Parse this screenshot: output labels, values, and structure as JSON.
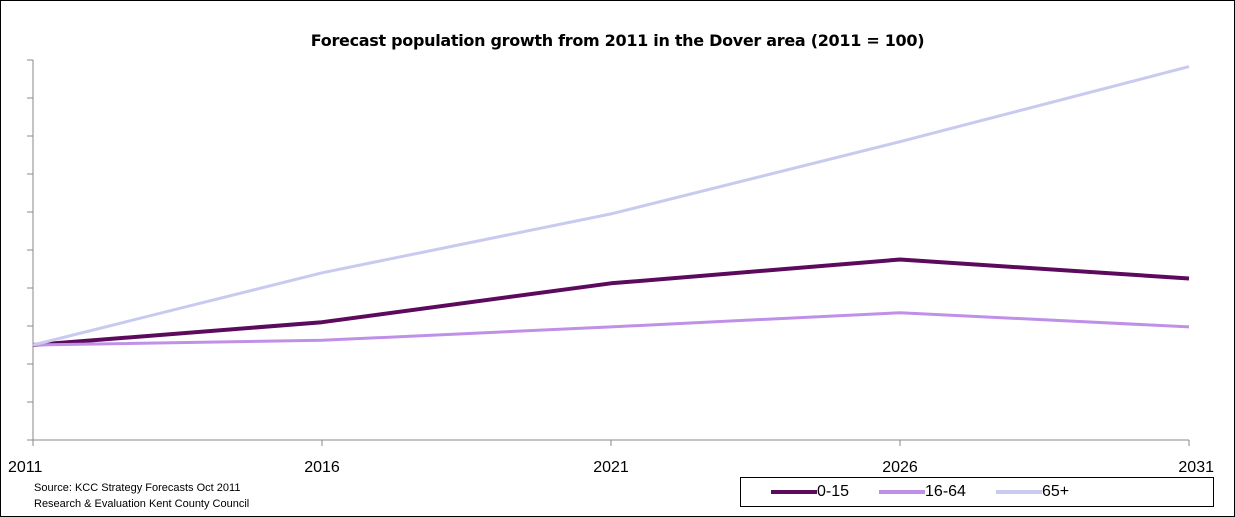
{
  "chart_data": {
    "type": "line",
    "title": "Forecast population growth from 2011 in the Dover  area (2011 = 100)",
    "xlabel": "",
    "ylabel": "",
    "x": [
      "2011",
      "2016",
      "2021",
      "2026",
      "2031"
    ],
    "ylim": [
      90,
      130
    ],
    "y_grid_step": 4,
    "grid": false,
    "legend_position": "bottom-right",
    "series": [
      {
        "name": "0-15",
        "color": "#5c0a5c",
        "values": [
          100,
          102.4,
          106.5,
          109.0,
          107.0
        ]
      },
      {
        "name": "16-64",
        "color": "#c090e8",
        "values": [
          100,
          100.5,
          101.9,
          103.4,
          101.9
        ]
      },
      {
        "name": "65+",
        "color": "#c8cbef",
        "values": [
          100,
          107.6,
          113.8,
          121.4,
          129.3
        ]
      }
    ]
  },
  "source": {
    "line1": "Source: KCC Strategy Forecasts Oct 2011",
    "line2": "Research & Evaluation Kent County Council"
  }
}
